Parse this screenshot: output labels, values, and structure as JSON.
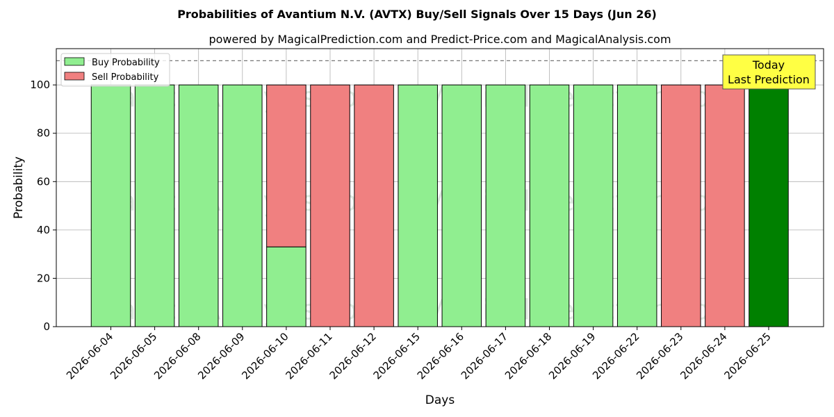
{
  "chart_data": {
    "type": "bar",
    "title": "Probabilities of Avantium N.V. (AVTX) Buy/Sell Signals Over 15 Days (Jun 26)",
    "subtitle": "powered by MagicalPrediction.com and Predict-Price.com and MagicalAnalysis.com",
    "xlabel": "Days",
    "ylabel": "Probability",
    "ylim": [
      0,
      115
    ],
    "yticks": [
      0,
      20,
      40,
      60,
      80,
      100
    ],
    "reference_line": 110,
    "grid": true,
    "legend_position": "top-left",
    "categories": [
      "2026-06-04",
      "2026-06-05",
      "2026-06-08",
      "2026-06-09",
      "2026-06-10",
      "2026-06-11",
      "2026-06-12",
      "2026-06-15",
      "2026-06-16",
      "2026-06-17",
      "2026-06-18",
      "2026-06-19",
      "2026-06-22",
      "2026-06-23",
      "2026-06-24",
      "2026-06-25"
    ],
    "series": [
      {
        "name": "Buy Probability",
        "values": [
          100,
          100,
          100,
          100,
          33,
          0,
          0,
          100,
          100,
          100,
          100,
          100,
          100,
          0,
          0,
          100
        ]
      },
      {
        "name": "Sell Probability",
        "values": [
          0,
          0,
          0,
          0,
          67,
          100,
          100,
          0,
          0,
          0,
          0,
          0,
          0,
          100,
          100,
          0
        ]
      }
    ],
    "highlight_index": 15,
    "annotation": [
      "Today",
      "Last Prediction"
    ],
    "watermarks": [
      "MagicalAnalysis.com",
      "MagicalPrediction.com"
    ],
    "colors": {
      "buy": "#90ee90",
      "sell": "#f08080",
      "highlight": "#008000",
      "annotation_bg": "#ffff44"
    }
  }
}
